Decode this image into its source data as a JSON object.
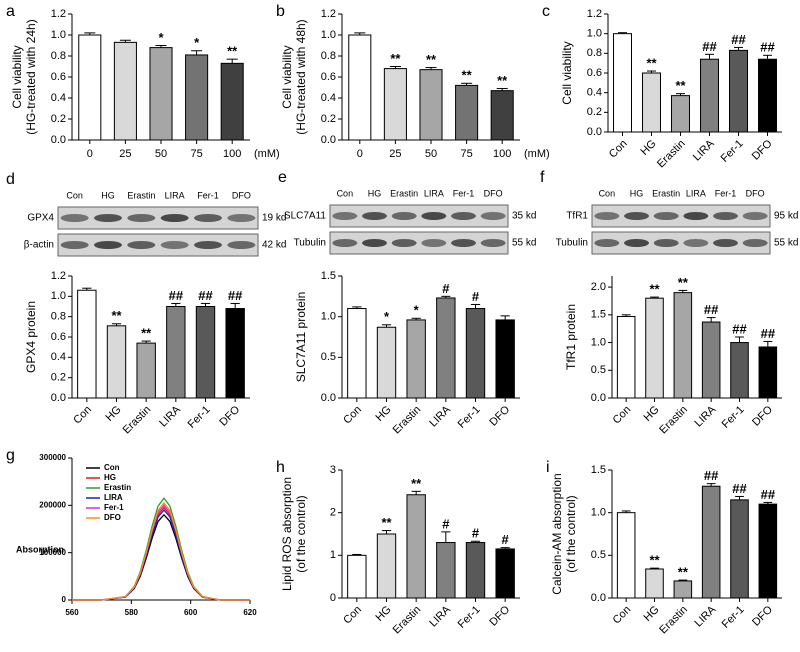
{
  "chart_data": [
    {
      "type": "bar",
      "panel": "a",
      "ylabel": [
        "Cell viability",
        "(HG-treated with 24h)"
      ],
      "xlabel": "(mM)",
      "categories": [
        "0",
        "25",
        "50",
        "75",
        "100"
      ],
      "values": [
        1.0,
        0.93,
        0.88,
        0.81,
        0.73
      ],
      "errors": [
        0.02,
        0.02,
        0.02,
        0.04,
        0.04
      ],
      "annotations": [
        null,
        null,
        "*",
        "*",
        "**"
      ],
      "colors": [
        "#ffffff",
        "#d9d9d9",
        "#a6a6a6",
        "#737373",
        "#404040"
      ],
      "ylim": [
        0,
        1.2
      ],
      "yticks": [
        {
          "value": 0,
          "label": "0.0"
        },
        0.2,
        0.4,
        0.6,
        0.8,
        {
          "value": 1,
          "label": "1.0"
        },
        1.2
      ]
    },
    {
      "type": "bar",
      "panel": "b",
      "ylabel": [
        "Cell viability",
        "(HG-treated with 48h)"
      ],
      "xlabel": "(mM)",
      "categories": [
        "0",
        "25",
        "50",
        "75",
        "100"
      ],
      "values": [
        1.0,
        0.68,
        0.67,
        0.52,
        0.47
      ],
      "errors": [
        0.02,
        0.02,
        0.02,
        0.02,
        0.02
      ],
      "annotations": [
        null,
        "**",
        "**",
        "**",
        "**"
      ],
      "colors": [
        "#ffffff",
        "#d9d9d9",
        "#a6a6a6",
        "#737373",
        "#404040"
      ],
      "ylim": [
        0,
        1.2
      ],
      "yticks": [
        {
          "value": 0,
          "label": "0.0"
        },
        0.2,
        0.4,
        0.6,
        0.8,
        {
          "value": 1,
          "label": "1.0"
        },
        1.2
      ]
    },
    {
      "type": "bar",
      "panel": "c",
      "ylabel": [
        "Cell viability"
      ],
      "categories": [
        "Con",
        "HG",
        "Erastin",
        "LIRA",
        "Fer-1",
        "DFO"
      ],
      "values": [
        1.0,
        0.6,
        0.37,
        0.74,
        0.83,
        0.74
      ],
      "errors": [
        0.01,
        0.02,
        0.02,
        0.05,
        0.03,
        0.04
      ],
      "annotations": [
        null,
        "**",
        "**",
        "##",
        "##",
        "##"
      ],
      "colors": [
        "#ffffff",
        "#d9d9d9",
        "#a6a6a6",
        "#808080",
        "#595959",
        "#000000"
      ],
      "ylim": [
        0,
        1.2
      ],
      "yticks": [
        {
          "value": 0,
          "label": "0.0"
        },
        0.2,
        0.4,
        0.6,
        0.8,
        {
          "value": 1,
          "label": "1.0"
        },
        1.2
      ]
    },
    {
      "type": "bar",
      "ylabel": [
        "GPX4  protein"
      ],
      "categories": [
        "Con",
        "HG",
        "Erastin",
        "LIRA",
        "Fer-1",
        "DFO"
      ],
      "values": [
        1.06,
        0.71,
        0.54,
        0.9,
        0.9,
        0.88
      ],
      "errors": [
        0.02,
        0.02,
        0.02,
        0.03,
        0.03,
        0.05
      ],
      "annotations": [
        null,
        "**",
        "**",
        "##",
        "##",
        "##"
      ],
      "colors": [
        "#ffffff",
        "#d9d9d9",
        "#a6a6a6",
        "#808080",
        "#595959",
        "#000000"
      ],
      "ylim": [
        0,
        1.2
      ],
      "yticks": [
        {
          "value": 0,
          "label": "0.0"
        },
        0.2,
        0.4,
        0.6,
        0.8,
        {
          "value": 1,
          "label": "1.0"
        },
        1.2
      ]
    },
    {
      "type": "bar",
      "ylabel": [
        "SLC7A11  protein"
      ],
      "categories": [
        "Con",
        "HG",
        "Erastin",
        "LIRA",
        "Fer-1",
        "DFO"
      ],
      "values": [
        1.1,
        0.87,
        0.96,
        1.23,
        1.1,
        0.96
      ],
      "errors": [
        0.02,
        0.03,
        0.02,
        0.02,
        0.05,
        0.05
      ],
      "annotations": [
        null,
        "*",
        "*",
        "#",
        "#",
        null
      ],
      "colors": [
        "#ffffff",
        "#d9d9d9",
        "#a6a6a6",
        "#808080",
        "#595959",
        "#000000"
      ],
      "ylim": [
        0,
        1.5
      ],
      "yticks": [
        {
          "value": 0,
          "label": "0.0"
        },
        0.5,
        {
          "value": 1,
          "label": "1.0"
        },
        1.5
      ]
    },
    {
      "type": "bar",
      "ylabel": [
        "TfR1  protein"
      ],
      "categories": [
        "Con",
        "HG",
        "Erastin",
        "LIRA",
        "Fer-1",
        "DFO"
      ],
      "values": [
        1.47,
        1.8,
        1.9,
        1.37,
        1.0,
        0.92
      ],
      "errors": [
        0.03,
        0.02,
        0.04,
        0.08,
        0.1,
        0.1
      ],
      "annotations": [
        null,
        "**",
        "**",
        "##",
        "##",
        "##"
      ],
      "colors": [
        "#ffffff",
        "#d9d9d9",
        "#a6a6a6",
        "#808080",
        "#595959",
        "#000000"
      ],
      "ylim": [
        0,
        2.2
      ],
      "yticks": [
        {
          "value": 0,
          "label": "0.0"
        },
        0.5,
        {
          "value": 1,
          "label": "1.0"
        },
        1.5,
        {
          "value": 2,
          "label": "2.0"
        }
      ]
    },
    {
      "type": "line",
      "panel": "g",
      "ylabel": [
        "Absorption"
      ],
      "legend": "upper left",
      "x": [
        560,
        570,
        578,
        581,
        583,
        585,
        587,
        589,
        591,
        593,
        595,
        597,
        599,
        601,
        604,
        610,
        620
      ],
      "xlim": [
        560,
        620
      ],
      "xticks": [
        560,
        580,
        600,
        620
      ],
      "ylim": [
        0,
        300000
      ],
      "yticks": [
        0,
        100000,
        200000,
        300000
      ],
      "series": [
        {
          "name": "Con",
          "color": "#000000",
          "values": [
            0,
            0,
            6100,
            24300,
            50000,
            87700,
            130700,
            166100,
            180000,
            166100,
            130700,
            87700,
            50000,
            24300,
            6100,
            0,
            0
          ]
        },
        {
          "name": "HG",
          "color": "#e31a1c",
          "values": [
            0,
            0,
            6600,
            26300,
            54200,
            95000,
            141600,
            180000,
            195000,
            180000,
            141600,
            95000,
            54200,
            26300,
            6600,
            0,
            0
          ]
        },
        {
          "name": "Erastin",
          "color": "#2ca02c",
          "values": [
            0,
            0,
            7300,
            29000,
            59800,
            104700,
            156100,
            198400,
            215000,
            198400,
            156100,
            104700,
            59800,
            29000,
            7300,
            0,
            0
          ]
        },
        {
          "name": "LIRA",
          "color": "#1f1fbf",
          "values": [
            0,
            0,
            6500,
            25700,
            52800,
            92500,
            137900,
            175400,
            190000,
            175400,
            137900,
            92500,
            52800,
            25700,
            6500,
            0,
            0
          ]
        },
        {
          "name": "Fer-1",
          "color": "#d62fd6",
          "values": [
            0,
            0,
            6800,
            27000,
            55600,
            97400,
            145200,
            184600,
            200000,
            184600,
            145200,
            97400,
            55600,
            27000,
            6800,
            0,
            0
          ]
        },
        {
          "name": "DFO",
          "color": "#ff8c1a",
          "values": [
            0,
            0,
            7000,
            27700,
            57000,
            99800,
            148800,
            189200,
            205000,
            189200,
            148800,
            99800,
            57000,
            27700,
            7000,
            0,
            0
          ]
        }
      ]
    },
    {
      "type": "bar",
      "panel": "h",
      "ylabel": [
        "Lipid ROS absorption",
        "(of the control)"
      ],
      "categories": [
        "Con",
        "HG",
        "Erastin",
        "LIRA",
        "Fer-1",
        "DFO"
      ],
      "values": [
        1.0,
        1.5,
        2.42,
        1.3,
        1.3,
        1.15
      ],
      "errors": [
        0.02,
        0.08,
        0.08,
        0.25,
        0.03,
        0.03
      ],
      "annotations": [
        null,
        "**",
        "**",
        "#",
        "#",
        "#"
      ],
      "colors": [
        "#ffffff",
        "#d9d9d9",
        "#a6a6a6",
        "#808080",
        "#595959",
        "#000000"
      ],
      "ylim": [
        0,
        3
      ],
      "yticks": [
        0,
        1,
        2,
        3
      ]
    },
    {
      "type": "bar",
      "panel": "i",
      "ylabel": [
        "Calcein-AM absorption",
        "(of the control)"
      ],
      "categories": [
        "Con",
        "HG",
        "Erastin",
        "LIRA",
        "Fer-1",
        "DFO"
      ],
      "values": [
        1.0,
        0.34,
        0.2,
        1.31,
        1.15,
        1.1
      ],
      "errors": [
        0.02,
        0.01,
        0.01,
        0.03,
        0.04,
        0.02
      ],
      "annotations": [
        null,
        "**",
        "**",
        "##",
        "##",
        "##"
      ],
      "colors": [
        "#ffffff",
        "#d9d9d9",
        "#a6a6a6",
        "#808080",
        "#595959",
        "#000000"
      ],
      "ylim": [
        0,
        1.5
      ],
      "yticks": [
        {
          "value": 0,
          "label": "0.0"
        },
        0.5,
        {
          "value": 1,
          "label": "1.0"
        },
        1.5
      ]
    }
  ],
  "blots": [
    {
      "panel": "d",
      "lanes": [
        "Con",
        "HG",
        "Erastin",
        "LIRA",
        "Fer-1",
        "DFO"
      ],
      "rows": [
        {
          "label": "GPX4",
          "size": "19 kd"
        },
        {
          "label": "β-actin",
          "size": "42 kd"
        }
      ]
    },
    {
      "panel": "e",
      "lanes": [
        "Con",
        "HG",
        "Erastin",
        "LIRA",
        "Fer-1",
        "DFO"
      ],
      "rows": [
        {
          "label": "SLC7A11",
          "size": "35 kd"
        },
        {
          "label": "Tubulin",
          "size": "55 kd"
        }
      ]
    },
    {
      "panel": "f",
      "lanes": [
        "Con",
        "HG",
        "Erastin",
        "LIRA",
        "Fer-1",
        "DFO"
      ],
      "rows": [
        {
          "label": "TfR1",
          "size": "95 kd"
        },
        {
          "label": "Tubulin",
          "size": "55 kd"
        }
      ]
    }
  ]
}
